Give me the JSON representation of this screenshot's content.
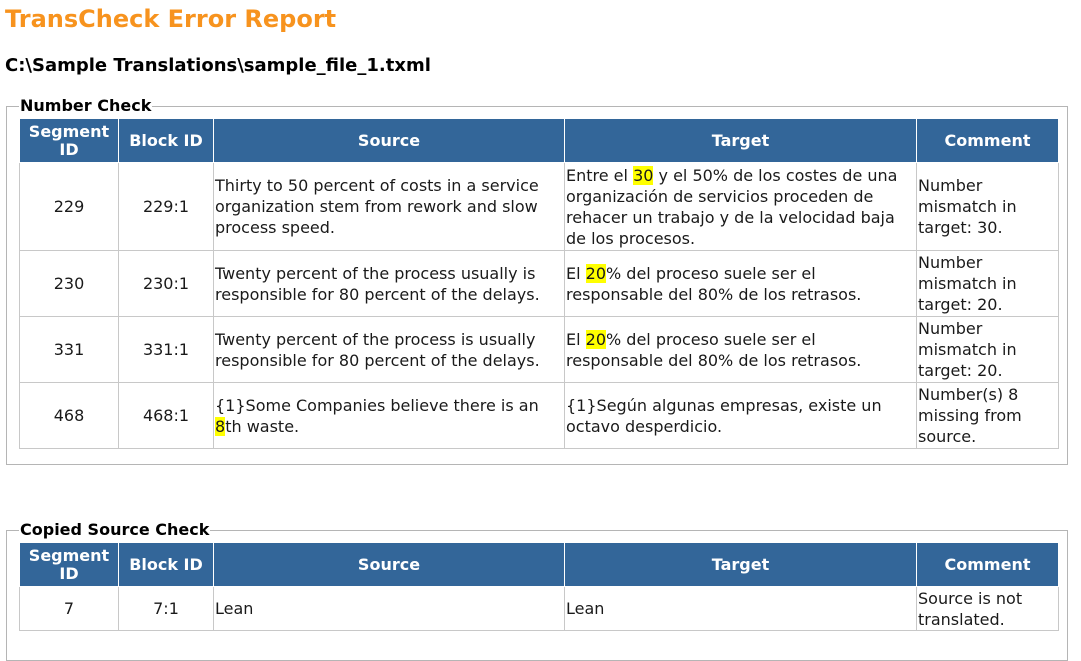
{
  "report": {
    "title": "TransCheck Error Report",
    "file_path": "C:\\Sample Translations\\sample_file_1.txml"
  },
  "columns": {
    "segment_id": "Segment ID",
    "block_id": "Block ID",
    "source": "Source",
    "target": "Target",
    "comment": "Comment"
  },
  "colors": {
    "title": "#f7931e",
    "header_bg": "#336699",
    "highlight": "#ffff00"
  },
  "number_check": {
    "title": "Number Check",
    "rows": [
      {
        "segment_id": "229",
        "block_id": "229:1",
        "source": "Thirty to 50 percent of costs in a service organization stem from rework and slow process speed.",
        "target_pre": "Entre el ",
        "target_hl": "30",
        "target_post": " y el 50% de los costes de una organización de servicios proceden de rehacer un trabajo y de la velocidad baja de los procesos.",
        "comment": "Number mismatch in target: 30."
      },
      {
        "segment_id": "230",
        "block_id": "230:1",
        "source": "Twenty percent of the process usually is responsible for 80 percent of the delays.",
        "target_pre": "El ",
        "target_hl": "20",
        "target_post": "% del proceso suele ser el responsable del 80% de los retrasos.",
        "comment": "Number mismatch in target: 20."
      },
      {
        "segment_id": "331",
        "block_id": "331:1",
        "source": "Twenty percent of the process is usually responsible for 80 percent of the delays.",
        "target_pre": "El ",
        "target_hl": "20",
        "target_post": "% del proceso suele ser el responsable del 80% de los retrasos.",
        "comment": "Number mismatch in target: 20."
      },
      {
        "segment_id": "468",
        "block_id": "468:1",
        "source_pre": "{1}Some Companies believe there is an ",
        "source_hl": "8",
        "source_post": "th waste.",
        "target": "{1}Según algunas empresas, existe un octavo desperdicio.",
        "comment": "Number(s) 8 missing from source."
      }
    ]
  },
  "copied_source_check": {
    "title": "Copied Source Check",
    "rows": [
      {
        "segment_id": "7",
        "block_id": "7:1",
        "source": "Lean",
        "target": "Lean",
        "comment": "Source is not translated."
      }
    ]
  }
}
